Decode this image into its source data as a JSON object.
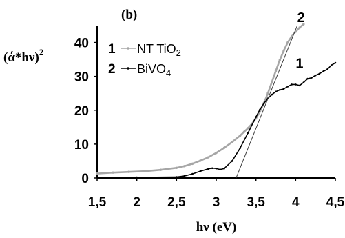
{
  "chart_data": {
    "type": "line",
    "panel_label": "(b)",
    "xlabel": "hν (eV)",
    "ylabel": "(ά*hν)",
    "ylabel_superscript": "2",
    "xlim": [
      1.5,
      4.5
    ],
    "ylim": [
      0,
      45
    ],
    "x_ticks": [
      1.5,
      2,
      2.5,
      3,
      3.5,
      4,
      4.5
    ],
    "x_tick_labels": [
      "1,5",
      "2",
      "2,5",
      "3",
      "3,5",
      "4",
      "4,5"
    ],
    "y_ticks": [
      0,
      10,
      20,
      30,
      40
    ],
    "y_tick_labels": [
      "0",
      "10",
      "20",
      "30",
      "40"
    ],
    "grid": false,
    "legend": {
      "placement": "top-left",
      "entries": [
        {
          "number": "1",
          "name": "NT TiO",
          "subscript": "2",
          "series_index": 0
        },
        {
          "number": "2",
          "name": "BiVO",
          "subscript": "4",
          "series_index": 1
        }
      ]
    },
    "curve_labels": [
      {
        "text": "2",
        "series_index": 0,
        "x": 4.02,
        "y": 46.0
      },
      {
        "text": "1",
        "series_index": 1,
        "x": 4.0,
        "y": 32.5
      }
    ],
    "series": [
      {
        "name": "NT TiO2",
        "color": "#a6a6a6",
        "x": [
          1.5,
          1.7,
          1.9,
          2.1,
          2.3,
          2.5,
          2.6,
          2.7,
          2.8,
          2.9,
          3.0,
          3.1,
          3.2,
          3.3,
          3.35,
          3.4,
          3.45,
          3.5,
          3.55,
          3.6,
          3.65,
          3.7,
          3.75,
          3.8,
          3.85,
          3.9,
          3.95,
          4.0,
          4.05,
          4.1
        ],
        "values": [
          1.3,
          1.6,
          1.8,
          2.0,
          2.4,
          3.0,
          3.5,
          4.2,
          5.1,
          6.1,
          7.4,
          8.9,
          10.6,
          12.5,
          13.6,
          14.7,
          16.0,
          17.6,
          19.6,
          22.1,
          25.0,
          28.3,
          31.6,
          34.8,
          37.6,
          40.0,
          41.8,
          43.2,
          44.4,
          45.4
        ]
      },
      {
        "name": "BiVO4",
        "color": "#000000",
        "x": [
          1.5,
          2.0,
          2.5,
          2.6,
          2.7,
          2.8,
          2.9,
          2.95,
          3.0,
          3.05,
          3.1,
          3.2,
          3.3,
          3.4,
          3.5,
          3.55,
          3.6,
          3.65,
          3.7,
          3.75,
          3.8,
          3.85,
          3.9,
          3.95,
          4.0,
          4.05,
          4.1,
          4.15,
          4.2,
          4.25,
          4.3,
          4.35,
          4.4,
          4.45,
          4.5
        ],
        "values": [
          0.2,
          0.2,
          0.3,
          0.6,
          1.2,
          2.0,
          2.7,
          2.9,
          2.8,
          2.5,
          2.8,
          5.0,
          8.8,
          13.3,
          18.0,
          20.2,
          22.0,
          23.5,
          24.6,
          25.5,
          26.0,
          26.3,
          27.0,
          27.6,
          27.6,
          27.3,
          28.2,
          29.3,
          29.6,
          30.3,
          30.8,
          31.5,
          32.1,
          33.3,
          34.0
        ]
      },
      {
        "name": "tangent",
        "color": "#3a3a3a",
        "x": [
          3.25,
          4.02
        ],
        "values": [
          0,
          45
        ]
      }
    ]
  }
}
